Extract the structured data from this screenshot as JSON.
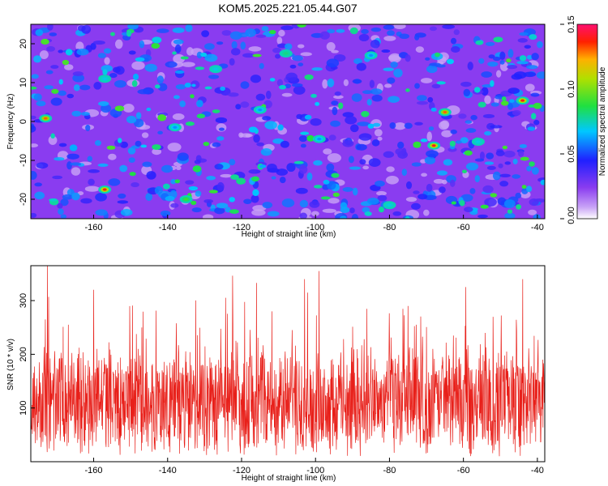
{
  "title": "KOM5.2025.221.05.44.G07",
  "colors": {
    "snr_line": "#e8201a",
    "axis": "#000000",
    "background": "#ffffff",
    "heatmap_bg": "#8a3cf0",
    "heatmap_bg_light": "#c8a2f6"
  },
  "chart_data": [
    {
      "type": "heatmap",
      "xlabel": "Height of straight line (km)",
      "ylabel": "Frequency (Hz)",
      "xlim": [
        -177,
        -38
      ],
      "ylim": [
        -25,
        25
      ],
      "xticks": [
        -160,
        -140,
        -120,
        -100,
        -80,
        -60,
        -40
      ],
      "yticks": [
        -20,
        -10,
        0,
        10,
        20
      ],
      "colorbar": {
        "label": "Normalized spectral amplitude",
        "range": [
          0,
          0.15
        ],
        "ticks": [
          "0.00",
          "0.05",
          "0.10",
          "0.15"
        ],
        "colormap": "rainbow (white-violet-blue-cyan-green-yellow-red-magenta)"
      },
      "peaks": [
        {
          "x": -173,
          "y": 0.8,
          "v": 0.13
        },
        {
          "x": -157,
          "y": -17.5,
          "v": 0.14
        },
        {
          "x": -157,
          "y": 11,
          "v": 0.07
        },
        {
          "x": -135,
          "y": -20,
          "v": 0.09
        },
        {
          "x": -127,
          "y": 13.5,
          "v": 0.07
        },
        {
          "x": -108,
          "y": 17.5,
          "v": 0.08
        },
        {
          "x": -80,
          "y": -21.5,
          "v": 0.07
        },
        {
          "x": -65,
          "y": 2.4,
          "v": 0.13
        },
        {
          "x": -68,
          "y": -6.2,
          "v": 0.14
        },
        {
          "x": -44,
          "y": 5.4,
          "v": 0.14
        },
        {
          "x": -56,
          "y": -5.2,
          "v": 0.07
        },
        {
          "x": -138,
          "y": -1.5,
          "v": 0.06
        },
        {
          "x": -99,
          "y": -4.5,
          "v": 0.06
        },
        {
          "x": -85,
          "y": 17.0,
          "v": 0.06
        },
        {
          "x": -115,
          "y": 3.0,
          "v": 0.06
        }
      ]
    },
    {
      "type": "line",
      "xlabel": "Height of straight line (km)",
      "ylabel": "SNR (10 * v/v)",
      "xlim": [
        -177,
        -38
      ],
      "ylim": [
        0,
        365
      ],
      "xticks": [
        -160,
        -140,
        -120,
        -100,
        -80,
        -60,
        -40
      ],
      "yticks": [
        100,
        200,
        300
      ],
      "series": [
        {
          "color": "#e8201a",
          "typical_range": [
            40,
            250
          ],
          "mean": 115,
          "peaks": [
            {
              "x": -172.5,
              "y": 365
            },
            {
              "x": -99,
              "y": 355
            },
            {
              "x": -116,
              "y": 333
            },
            {
              "x": -103,
              "y": 340
            },
            {
              "x": -44,
              "y": 340
            },
            {
              "x": -160,
              "y": 320
            }
          ]
        }
      ]
    }
  ]
}
